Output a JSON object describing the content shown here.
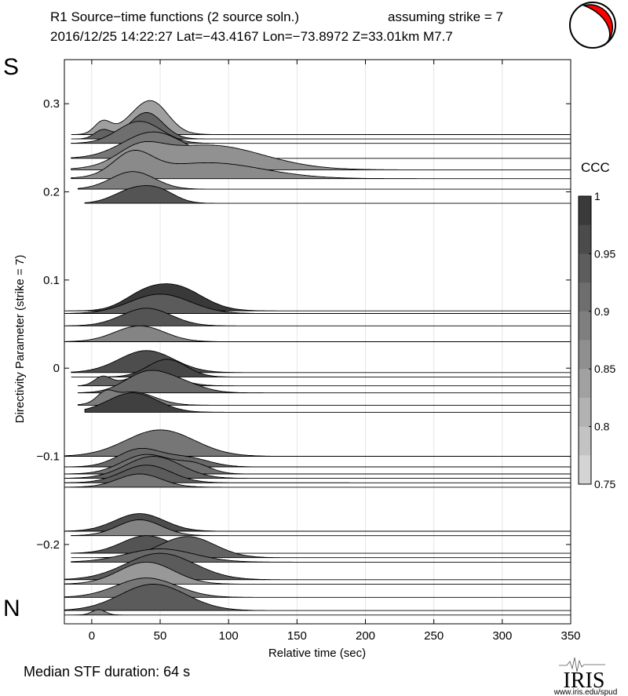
{
  "title_line1": "R1 Source−time functions (2 source soln.)",
  "title_strike": "assuming strike = 7",
  "title_line2": "2016/12/25 14:22:27  Lat=−43.4167 Lon=−73.8972  Z=33.01km  M7.7",
  "south_label": "S",
  "north_label": "N",
  "footer": "Median STF duration: 64 s",
  "logo": {
    "text": "IRIS",
    "url": "www.iris.edu/spud"
  },
  "colors": {
    "beachball_fill": "#ff0000",
    "background": "#ffffff"
  },
  "chart_data": {
    "type": "area",
    "title": "R1 Source−time functions (2 source soln.)",
    "xlabel": "Relative time (sec)",
    "ylabel": "Directivity Parameter (strike = 7)",
    "xlim": [
      -20,
      350
    ],
    "ylim": [
      -0.29,
      0.35
    ],
    "x_ticks": [
      0,
      50,
      100,
      150,
      200,
      250,
      300,
      350
    ],
    "x_tick_labels": [
      "0",
      "50",
      "100",
      "150",
      "200",
      "250",
      "300",
      "350"
    ],
    "y_ticks": [
      0.3,
      0.2,
      0.1,
      0,
      -0.1,
      -0.2
    ],
    "y_tick_labels": [
      "0.3",
      "0.2",
      "0.1",
      "0",
      "−0.1",
      "−0.2"
    ],
    "grid": "vertical",
    "colorbar": {
      "label": "CCC",
      "range": [
        0.75,
        1
      ],
      "ticks": [
        1,
        0.95,
        0.9,
        0.85,
        0.8,
        0.75
      ],
      "tick_labels": [
        "1",
        "0.95",
        "0.9",
        "0.85",
        "0.8",
        "0.75"
      ]
    },
    "series": [
      {
        "y": 0.265,
        "start": -15,
        "pulses": [
          [
            8,
            6,
            0.014
          ],
          [
            40,
            14,
            0.03
          ],
          [
            47,
            10,
            0.01
          ]
        ],
        "ccc": 0.84
      },
      {
        "y": 0.26,
        "start": -15,
        "pulses": [
          [
            8,
            6,
            0.01
          ],
          [
            40,
            12,
            0.03
          ]
        ],
        "ccc": 0.93
      },
      {
        "y": 0.255,
        "start": -15,
        "pulses": [
          [
            35,
            16,
            0.025
          ]
        ],
        "ccc": 0.91
      },
      {
        "y": 0.238,
        "start": -15,
        "pulses": [
          [
            45,
            22,
            0.03
          ]
        ],
        "ccc": 0.9
      },
      {
        "y": 0.225,
        "start": -15,
        "pulses": [
          [
            35,
            16,
            0.018
          ],
          [
            85,
            40,
            0.028
          ]
        ],
        "ccc": 0.86
      },
      {
        "y": 0.215,
        "start": -15,
        "pulses": [
          [
            30,
            14,
            0.025
          ],
          [
            85,
            40,
            0.018
          ]
        ],
        "ccc": 0.87
      },
      {
        "y": 0.203,
        "start": -10,
        "pulses": [
          [
            30,
            16,
            0.02
          ]
        ],
        "ccc": 0.89
      },
      {
        "y": 0.187,
        "start": -5,
        "pulses": [
          [
            30,
            14,
            0.015
          ],
          [
            50,
            12,
            0.012
          ]
        ],
        "ccc": 0.95
      },
      {
        "y": 0.065,
        "start": -20,
        "pulses": [
          [
            60,
            20,
            0.028
          ],
          [
            35,
            14,
            0.01
          ]
        ],
        "ccc": 0.99
      },
      {
        "y": 0.062,
        "start": -20,
        "pulses": [
          [
            50,
            22,
            0.022
          ]
        ],
        "ccc": 0.94
      },
      {
        "y": 0.048,
        "start": -20,
        "pulses": [
          [
            40,
            18,
            0.02
          ]
        ],
        "ccc": 0.95
      },
      {
        "y": 0.03,
        "start": -20,
        "pulses": [
          [
            35,
            18,
            0.018
          ]
        ],
        "ccc": 0.88
      },
      {
        "y": -0.005,
        "start": -15,
        "pulses": [
          [
            40,
            20,
            0.025
          ]
        ],
        "ccc": 0.96
      },
      {
        "y": -0.01,
        "start": -15,
        "pulses": [
          [
            55,
            14,
            0.02
          ]
        ],
        "ccc": 0.97
      },
      {
        "y": -0.02,
        "start": -10,
        "pulses": [
          [
            8,
            6,
            0.01
          ],
          [
            45,
            16,
            0.016
          ]
        ],
        "ccc": 0.93
      },
      {
        "y": -0.028,
        "start": -10,
        "pulses": [
          [
            40,
            16,
            0.022
          ],
          [
            65,
            16,
            0.01
          ]
        ],
        "ccc": 0.92
      },
      {
        "y": -0.042,
        "start": -10,
        "pulses": [
          [
            10,
            6,
            0.01
          ],
          [
            30,
            16,
            0.015
          ]
        ],
        "ccc": 0.89
      },
      {
        "y": -0.05,
        "start": -5,
        "pulses": [
          [
            30,
            18,
            0.022
          ]
        ],
        "ccc": 0.98
      },
      {
        "y": -0.1,
        "start": -20,
        "pulses": [
          [
            50,
            25,
            0.03
          ]
        ],
        "ccc": 0.9
      },
      {
        "y": -0.112,
        "start": -20,
        "pulses": [
          [
            35,
            16,
            0.02
          ],
          [
            70,
            16,
            0.01
          ]
        ],
        "ccc": 0.92
      },
      {
        "y": -0.12,
        "start": -20,
        "pulses": [
          [
            40,
            18,
            0.022
          ],
          [
            75,
            12,
            0.01
          ]
        ],
        "ccc": 0.91
      },
      {
        "y": -0.125,
        "start": -20,
        "pulses": [
          [
            45,
            20,
            0.025
          ]
        ],
        "ccc": 0.93
      },
      {
        "y": -0.13,
        "start": -20,
        "pulses": [
          [
            40,
            18,
            0.02
          ]
        ],
        "ccc": 0.94
      },
      {
        "y": -0.135,
        "start": -20,
        "pulses": [
          [
            35,
            16,
            0.015
          ]
        ],
        "ccc": 0.9
      },
      {
        "y": -0.185,
        "start": -20,
        "pulses": [
          [
            35,
            18,
            0.02
          ]
        ],
        "ccc": 0.96
      },
      {
        "y": -0.19,
        "start": -15,
        "pulses": [
          [
            35,
            16,
            0.018
          ]
        ],
        "ccc": 0.88
      },
      {
        "y": -0.21,
        "start": -15,
        "pulses": [
          [
            40,
            18,
            0.02
          ]
        ],
        "ccc": 0.95
      },
      {
        "y": -0.215,
        "start": -15,
        "pulses": [
          [
            70,
            20,
            0.024
          ]
        ],
        "ccc": 0.93
      },
      {
        "y": -0.22,
        "start": -15,
        "pulses": [
          [
            50,
            25,
            0.015
          ]
        ],
        "ccc": 0.92
      },
      {
        "y": -0.24,
        "start": -20,
        "pulses": [
          [
            50,
            25,
            0.03
          ]
        ],
        "ccc": 0.94
      },
      {
        "y": -0.245,
        "start": -20,
        "pulses": [
          [
            40,
            20,
            0.025
          ]
        ],
        "ccc": 0.85
      },
      {
        "y": -0.26,
        "start": -20,
        "pulses": [
          [
            40,
            22,
            0.022
          ]
        ],
        "ccc": 0.9
      },
      {
        "y": -0.275,
        "start": -20,
        "pulses": [
          [
            45,
            24,
            0.03
          ]
        ],
        "ccc": 0.94
      },
      {
        "y": -0.28,
        "start": -20,
        "pulses": [
          [
            5,
            5,
            0.006
          ]
        ],
        "ccc": 0.87
      }
    ]
  }
}
